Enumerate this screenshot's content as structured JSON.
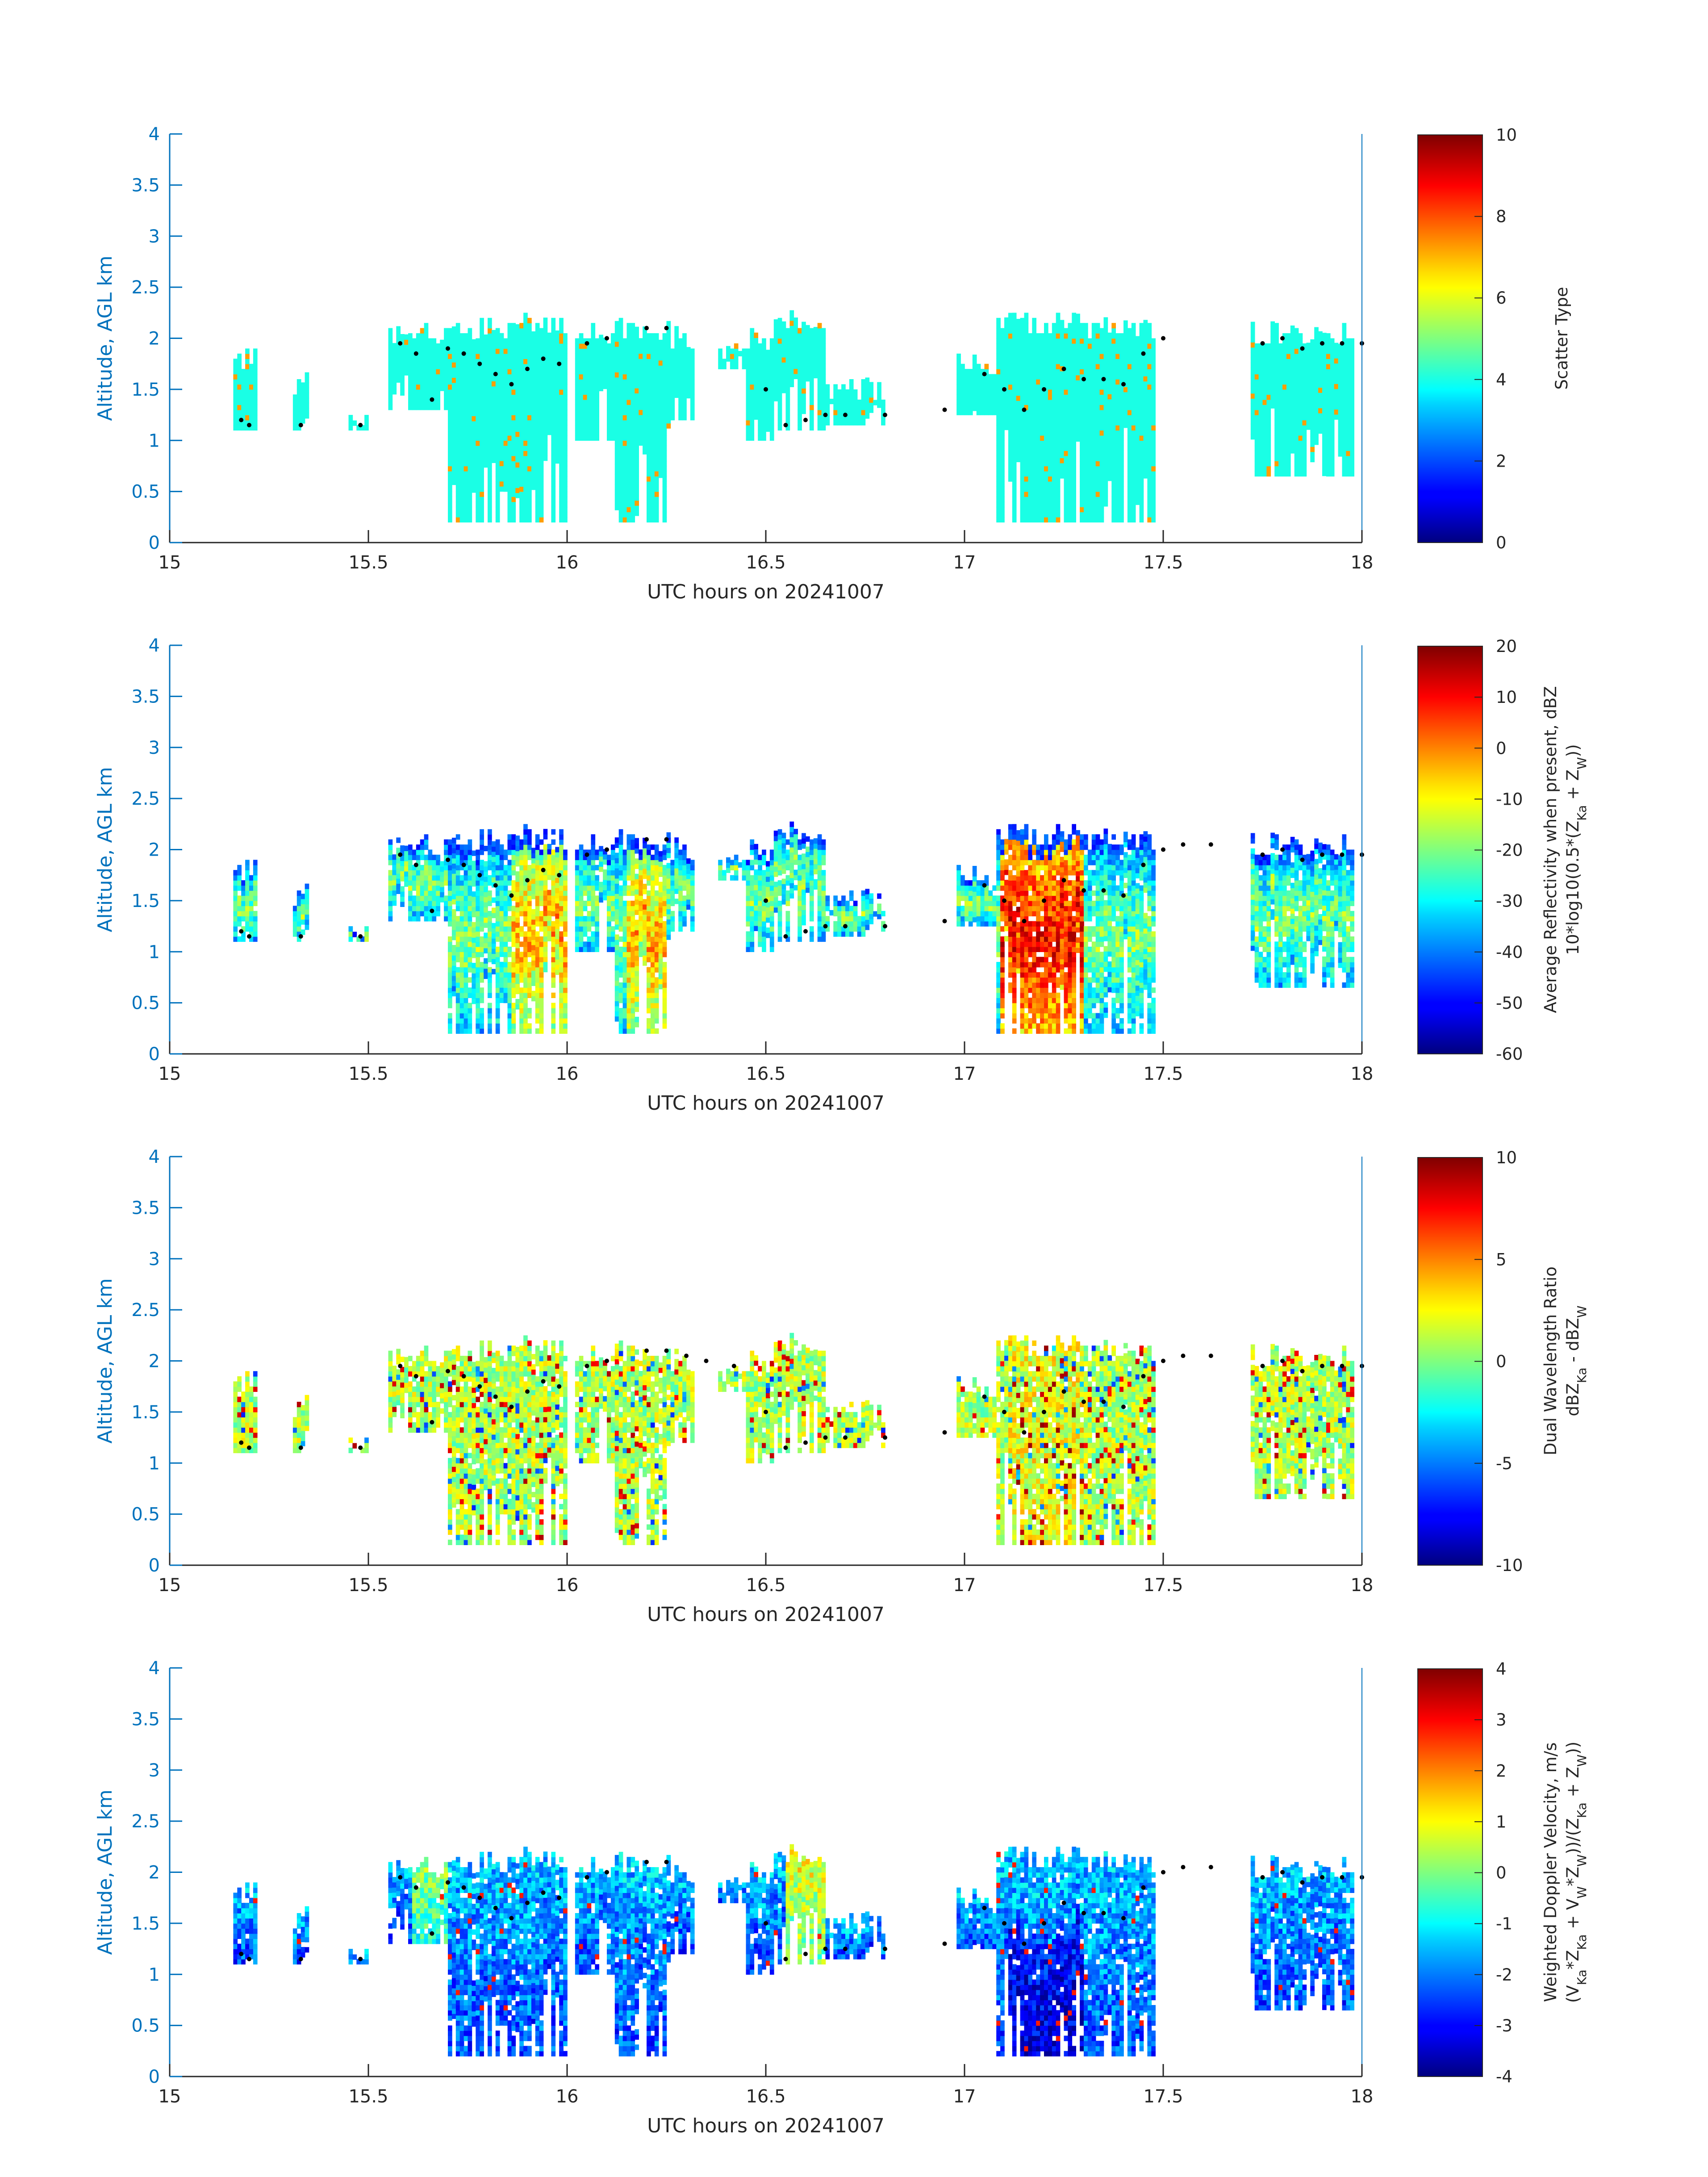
{
  "chart_data": [
    {
      "type": "heatmap",
      "ylabel": "Altitude, AGL km",
      "xlabel": "UTC hours on 20241007",
      "xlim": [
        15,
        18
      ],
      "ylim": [
        0,
        4
      ],
      "x_ticks": [
        "15",
        "15.5",
        "16",
        "16.5",
        "17",
        "17.5",
        "18"
      ],
      "y_ticks": [
        "0",
        "0.5",
        "1",
        "1.5",
        "2",
        "2.5",
        "3",
        "3.5",
        "4"
      ],
      "colorbar": {
        "label_lines": [
          "Scatter Type"
        ],
        "range": [
          0,
          10
        ],
        "ticks": [
          "0",
          "2",
          "4",
          "6",
          "8",
          "10"
        ]
      },
      "cloud_top_markers": [
        [
          15.18,
          1.2
        ],
        [
          15.2,
          1.15
        ],
        [
          15.33,
          1.15
        ],
        [
          15.48,
          1.15
        ],
        [
          15.58,
          1.95
        ],
        [
          15.62,
          1.85
        ],
        [
          15.66,
          1.4
        ],
        [
          15.7,
          1.9
        ],
        [
          15.74,
          1.85
        ],
        [
          15.78,
          1.75
        ],
        [
          15.82,
          1.65
        ],
        [
          15.86,
          1.55
        ],
        [
          15.9,
          1.7
        ],
        [
          15.94,
          1.8
        ],
        [
          15.98,
          1.75
        ],
        [
          16.05,
          1.95
        ],
        [
          16.1,
          2.0
        ],
        [
          16.2,
          2.1
        ],
        [
          16.25,
          2.1
        ],
        [
          16.5,
          1.5
        ],
        [
          16.55,
          1.15
        ],
        [
          16.6,
          1.2
        ],
        [
          16.65,
          1.25
        ],
        [
          16.7,
          1.25
        ],
        [
          16.8,
          1.25
        ],
        [
          16.95,
          1.3
        ],
        [
          17.05,
          1.65
        ],
        [
          17.1,
          1.5
        ],
        [
          17.15,
          1.3
        ],
        [
          17.2,
          1.5
        ],
        [
          17.25,
          1.7
        ],
        [
          17.3,
          1.6
        ],
        [
          17.35,
          1.6
        ],
        [
          17.4,
          1.55
        ],
        [
          17.45,
          1.85
        ],
        [
          17.5,
          2.0
        ],
        [
          17.75,
          1.95
        ],
        [
          17.8,
          2.0
        ],
        [
          17.85,
          1.9
        ],
        [
          17.9,
          1.95
        ],
        [
          17.95,
          1.95
        ],
        [
          18.0,
          1.95
        ]
      ]
    },
    {
      "type": "heatmap",
      "ylabel": "Altitude, AGL km",
      "xlabel": "UTC hours on 20241007",
      "xlim": [
        15,
        18
      ],
      "ylim": [
        0,
        4
      ],
      "x_ticks": [
        "15",
        "15.5",
        "16",
        "16.5",
        "17",
        "17.5",
        "18"
      ],
      "y_ticks": [
        "0",
        "0.5",
        "1",
        "1.5",
        "2",
        "2.5",
        "3",
        "3.5",
        "4"
      ],
      "colorbar": {
        "label_lines": [
          "Average Reflectivity when present, dBZ",
          "10*log10(0.5*(Z",
          "Ka",
          " + Z",
          "W",
          "))"
        ],
        "range": [
          -60,
          20
        ],
        "ticks": [
          "-60",
          "-50",
          "-40",
          "-30",
          "-20",
          "-10",
          "0",
          "10",
          "20"
        ]
      },
      "cloud_top_markers": [
        [
          15.18,
          1.2
        ],
        [
          15.2,
          1.15
        ],
        [
          15.33,
          1.15
        ],
        [
          15.48,
          1.15
        ],
        [
          15.58,
          1.95
        ],
        [
          15.62,
          1.85
        ],
        [
          15.66,
          1.4
        ],
        [
          15.7,
          1.9
        ],
        [
          15.74,
          1.85
        ],
        [
          15.78,
          1.75
        ],
        [
          15.82,
          1.65
        ],
        [
          15.86,
          1.55
        ],
        [
          15.9,
          1.7
        ],
        [
          15.94,
          1.8
        ],
        [
          15.98,
          1.75
        ],
        [
          16.05,
          1.95
        ],
        [
          16.1,
          2.0
        ],
        [
          16.2,
          2.1
        ],
        [
          16.25,
          2.1
        ],
        [
          16.5,
          1.5
        ],
        [
          16.55,
          1.15
        ],
        [
          16.6,
          1.2
        ],
        [
          16.65,
          1.25
        ],
        [
          16.7,
          1.25
        ],
        [
          16.8,
          1.25
        ],
        [
          16.95,
          1.3
        ],
        [
          17.05,
          1.65
        ],
        [
          17.1,
          1.5
        ],
        [
          17.15,
          1.3
        ],
        [
          17.2,
          1.5
        ],
        [
          17.25,
          1.7
        ],
        [
          17.3,
          1.6
        ],
        [
          17.35,
          1.6
        ],
        [
          17.4,
          1.55
        ],
        [
          17.45,
          1.85
        ],
        [
          17.5,
          2.0
        ],
        [
          17.55,
          2.05
        ],
        [
          17.62,
          2.05
        ],
        [
          17.75,
          1.95
        ],
        [
          17.8,
          2.0
        ],
        [
          17.85,
          1.9
        ],
        [
          17.9,
          1.95
        ],
        [
          17.95,
          1.95
        ],
        [
          18.0,
          1.95
        ]
      ]
    },
    {
      "type": "heatmap",
      "ylabel": "Altitude, AGL km",
      "xlabel": "UTC hours on 20241007",
      "xlim": [
        15,
        18
      ],
      "ylim": [
        0,
        4
      ],
      "x_ticks": [
        "15",
        "15.5",
        "16",
        "16.5",
        "17",
        "17.5",
        "18"
      ],
      "y_ticks": [
        "0",
        "0.5",
        "1",
        "1.5",
        "2",
        "2.5",
        "3",
        "3.5",
        "4"
      ],
      "colorbar": {
        "label_lines": [
          "Dual Wavelength Ratio",
          "dBZ",
          "Ka",
          " - dBZ",
          "W"
        ],
        "range": [
          -10,
          10
        ],
        "ticks": [
          "-10",
          "-5",
          "0",
          "5",
          "10"
        ]
      },
      "cloud_top_markers": [
        [
          15.18,
          1.2
        ],
        [
          15.2,
          1.15
        ],
        [
          15.33,
          1.15
        ],
        [
          15.48,
          1.15
        ],
        [
          15.58,
          1.95
        ],
        [
          15.62,
          1.85
        ],
        [
          15.66,
          1.4
        ],
        [
          15.7,
          1.9
        ],
        [
          15.74,
          1.85
        ],
        [
          15.78,
          1.75
        ],
        [
          15.82,
          1.65
        ],
        [
          15.86,
          1.55
        ],
        [
          15.9,
          1.7
        ],
        [
          15.94,
          1.8
        ],
        [
          15.98,
          1.75
        ],
        [
          16.05,
          1.95
        ],
        [
          16.1,
          2.0
        ],
        [
          16.2,
          2.1
        ],
        [
          16.25,
          2.1
        ],
        [
          16.3,
          2.05
        ],
        [
          16.35,
          2.0
        ],
        [
          16.42,
          1.95
        ],
        [
          16.5,
          1.5
        ],
        [
          16.55,
          1.15
        ],
        [
          16.6,
          1.2
        ],
        [
          16.65,
          1.25
        ],
        [
          16.7,
          1.25
        ],
        [
          16.8,
          1.25
        ],
        [
          16.95,
          1.3
        ],
        [
          17.05,
          1.65
        ],
        [
          17.1,
          1.5
        ],
        [
          17.15,
          1.3
        ],
        [
          17.2,
          1.5
        ],
        [
          17.25,
          1.7
        ],
        [
          17.3,
          1.6
        ],
        [
          17.35,
          1.6
        ],
        [
          17.4,
          1.55
        ],
        [
          17.45,
          1.85
        ],
        [
          17.5,
          2.0
        ],
        [
          17.55,
          2.05
        ],
        [
          17.62,
          2.05
        ],
        [
          17.75,
          1.95
        ],
        [
          17.8,
          2.0
        ],
        [
          17.85,
          1.9
        ],
        [
          17.9,
          1.95
        ],
        [
          17.95,
          1.95
        ],
        [
          18.0,
          1.95
        ]
      ]
    },
    {
      "type": "heatmap",
      "ylabel": "Altitude, AGL km",
      "xlabel": "UTC hours on 20241007",
      "xlim": [
        15,
        18
      ],
      "ylim": [
        0,
        4
      ],
      "x_ticks": [
        "15",
        "15.5",
        "16",
        "16.5",
        "17",
        "17.5",
        "18"
      ],
      "y_ticks": [
        "0",
        "0.5",
        "1",
        "1.5",
        "2",
        "2.5",
        "3",
        "3.5",
        "4"
      ],
      "colorbar": {
        "label_lines": [
          "Weighted Doppler Velocity, m/s",
          "(V",
          "Ka",
          "*Z",
          "Ka",
          " + V",
          "W",
          "*Z",
          "W",
          "))/(Z",
          "Ka",
          " + Z",
          "W",
          "))"
        ],
        "range": [
          -4,
          4
        ],
        "ticks": [
          "-4",
          "-3",
          "-2",
          "-1",
          "0",
          "1",
          "2",
          "3",
          "4"
        ]
      },
      "cloud_top_markers": [
        [
          15.18,
          1.2
        ],
        [
          15.2,
          1.15
        ],
        [
          15.33,
          1.15
        ],
        [
          15.48,
          1.15
        ],
        [
          15.58,
          1.95
        ],
        [
          15.62,
          1.85
        ],
        [
          15.66,
          1.4
        ],
        [
          15.7,
          1.9
        ],
        [
          15.74,
          1.85
        ],
        [
          15.78,
          1.75
        ],
        [
          15.82,
          1.65
        ],
        [
          15.86,
          1.55
        ],
        [
          15.9,
          1.7
        ],
        [
          15.94,
          1.8
        ],
        [
          15.98,
          1.75
        ],
        [
          16.05,
          1.95
        ],
        [
          16.1,
          2.0
        ],
        [
          16.2,
          2.1
        ],
        [
          16.25,
          2.1
        ],
        [
          16.5,
          1.5
        ],
        [
          16.55,
          1.15
        ],
        [
          16.6,
          1.2
        ],
        [
          16.65,
          1.25
        ],
        [
          16.7,
          1.25
        ],
        [
          16.8,
          1.25
        ],
        [
          16.95,
          1.3
        ],
        [
          17.05,
          1.65
        ],
        [
          17.1,
          1.5
        ],
        [
          17.15,
          1.3
        ],
        [
          17.2,
          1.5
        ],
        [
          17.25,
          1.7
        ],
        [
          17.3,
          1.6
        ],
        [
          17.35,
          1.6
        ],
        [
          17.4,
          1.55
        ],
        [
          17.45,
          1.85
        ],
        [
          17.5,
          2.0
        ],
        [
          17.55,
          2.05
        ],
        [
          17.62,
          2.05
        ],
        [
          17.75,
          1.95
        ],
        [
          17.8,
          2.0
        ],
        [
          17.85,
          1.9
        ],
        [
          17.9,
          1.95
        ],
        [
          17.95,
          1.95
        ],
        [
          18.0,
          1.95
        ]
      ]
    }
  ],
  "colors": {
    "axis": "#0072BD",
    "text": "#262626",
    "marker": "#000000"
  },
  "cloud_regions": [
    {
      "x0": 15.16,
      "x1": 15.22,
      "top": 1.9,
      "bot": 1.1
    },
    {
      "x0": 15.31,
      "x1": 15.35,
      "top": 1.65,
      "bot": 1.1
    },
    {
      "x0": 15.45,
      "x1": 15.5,
      "top": 1.35,
      "bot": 1.1
    },
    {
      "x0": 15.55,
      "x1": 15.7,
      "top": 2.15,
      "bot": 1.3
    },
    {
      "x0": 15.7,
      "x1": 15.85,
      "top": 2.2,
      "bot": 0.2
    },
    {
      "x0": 15.85,
      "x1": 16.0,
      "top": 2.25,
      "bot": 0.2
    },
    {
      "x0": 16.02,
      "x1": 16.12,
      "top": 2.15,
      "bot": 1.0
    },
    {
      "x0": 16.12,
      "x1": 16.26,
      "top": 2.2,
      "bot": 0.2
    },
    {
      "x0": 16.26,
      "x1": 16.32,
      "top": 2.1,
      "bot": 1.2
    },
    {
      "x0": 16.38,
      "x1": 16.45,
      "top": 2.0,
      "bot": 1.7
    },
    {
      "x0": 16.45,
      "x1": 16.52,
      "top": 2.1,
      "bot": 1.0
    },
    {
      "x0": 16.52,
      "x1": 16.65,
      "top": 2.25,
      "bot": 1.1
    },
    {
      "x0": 16.65,
      "x1": 16.8,
      "top": 1.6,
      "bot": 1.15
    },
    {
      "x0": 16.98,
      "x1": 17.08,
      "top": 1.85,
      "bot": 1.25
    },
    {
      "x0": 17.08,
      "x1": 17.3,
      "top": 2.25,
      "bot": 0.2
    },
    {
      "x0": 17.3,
      "x1": 17.48,
      "top": 2.2,
      "bot": 0.2
    },
    {
      "x0": 17.55,
      "x1": 17.58,
      "top": 1.35,
      "bot": 1.3
    },
    {
      "x0": 17.72,
      "x1": 17.98,
      "top": 2.15,
      "bot": 0.65
    },
    {
      "x0": 17.98,
      "x1": 18.0,
      "top": 2.0,
      "bot": 1.9
    }
  ]
}
